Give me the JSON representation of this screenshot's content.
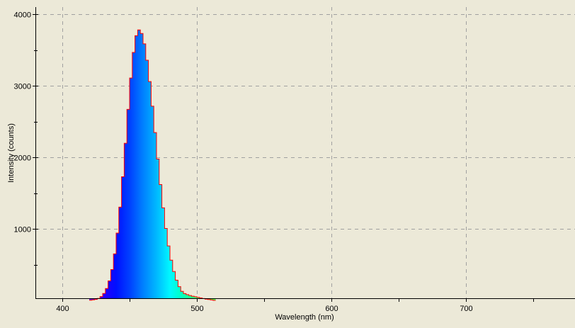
{
  "chart_data": {
    "type": "area",
    "xlabel": "Wavelength (nm)",
    "ylabel": "Intensity (counts)",
    "xlim": [
      380,
      781
    ],
    "ylim": [
      0,
      4000
    ],
    "x_ticks": [
      400,
      500,
      600,
      700
    ],
    "x_tick_labels": [
      "400",
      "500",
      "600",
      "700"
    ],
    "x_minor_ticks": [
      450,
      550,
      650,
      750
    ],
    "y_ticks": [
      1000,
      2000,
      3000,
      4000
    ],
    "y_tick_labels": [
      "1000",
      "2000",
      "3000",
      "4000"
    ],
    "y_minor_ticks": [
      500,
      1500,
      2500,
      3500
    ],
    "grid": true,
    "outline_color": "#ff0000",
    "background_color": "#ece9d8",
    "grid_color": "#a0a0a0",
    "fill": "wavelength-colored gradient (violet-blue to cyan to green)",
    "x": [
      420,
      422,
      424,
      426,
      428,
      430,
      432,
      434,
      436,
      438,
      440,
      442,
      444,
      446,
      448,
      450,
      452,
      454,
      456,
      458,
      460,
      462,
      464,
      466,
      468,
      470,
      472,
      474,
      476,
      478,
      480,
      482,
      484,
      486,
      488,
      490,
      492,
      494,
      496,
      498,
      500,
      502,
      504,
      506,
      508,
      510,
      512
    ],
    "values": [
      3,
      7,
      14,
      28,
      53,
      96,
      165,
      272,
      431,
      650,
      941,
      1303,
      1728,
      2196,
      2669,
      3108,
      3465,
      3699,
      3780,
      3730,
      3585,
      3356,
      3058,
      2714,
      2346,
      1975,
      1619,
      1293,
      1005,
      761,
      562,
      403,
      282,
      192,
      127,
      95,
      80,
      68,
      58,
      50,
      42,
      34,
      26,
      18,
      12,
      6,
      0
    ]
  }
}
